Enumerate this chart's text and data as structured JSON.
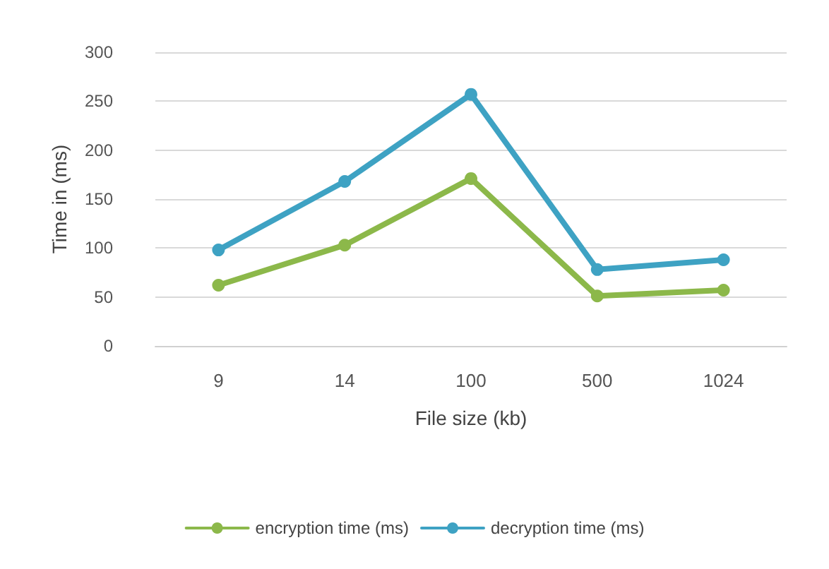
{
  "chart_data": {
    "type": "line",
    "xlabel": "File size (kb)",
    "ylabel": "Time in (ms)",
    "categories": [
      "9",
      "14",
      "100",
      "500",
      "1024"
    ],
    "series": [
      {
        "name": "encryption time (ms)",
        "color": "#8cb84a",
        "values": [
          62,
          103,
          171,
          51,
          57
        ]
      },
      {
        "name": "decryption time (ms)",
        "color": "#3ea2c3",
        "values": [
          98,
          168,
          257,
          78,
          88
        ]
      }
    ],
    "ylim": [
      0,
      300
    ],
    "yticks": [
      0,
      50,
      100,
      150,
      200,
      250,
      300
    ],
    "grid": "y",
    "legend": "bottom",
    "marker": "circle",
    "line_style": "solid"
  }
}
